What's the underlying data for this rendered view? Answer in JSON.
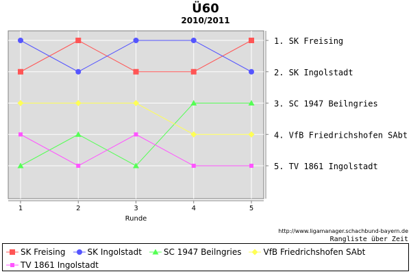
{
  "chart_data": {
    "type": "line",
    "title": "Ü60",
    "subtitle": "2010/2011",
    "xlabel": "Runde",
    "x": [
      1,
      2,
      3,
      4,
      5
    ],
    "ylim": [
      1,
      5
    ],
    "y_inverted": true,
    "grid": true,
    "rank_labels": [
      "1. SK Freising",
      "2. SK Ingolstadt",
      "3. SC 1947 Beilngries",
      "4. VfB Friedrichshofen SAbt",
      "5. TV 1861 Ingolstadt"
    ],
    "legend_position": "bottom",
    "series": [
      {
        "name": "SK Freising",
        "values": [
          2,
          1,
          2,
          2,
          1
        ],
        "color": "#ff5555",
        "marker": "square"
      },
      {
        "name": "SK Ingolstadt",
        "values": [
          1,
          2,
          1,
          1,
          2
        ],
        "color": "#5555ff",
        "marker": "circle"
      },
      {
        "name": "SC 1947 Beilngries",
        "values": [
          5,
          4,
          5,
          3,
          3
        ],
        "color": "#55ff55",
        "marker": "triangle"
      },
      {
        "name": "VfB Friedrichshofen SAbt",
        "values": [
          3,
          3,
          3,
          4,
          4
        ],
        "color": "#ffff55",
        "marker": "diamond"
      },
      {
        "name": "TV 1861 Ingolstadt",
        "values": [
          4,
          5,
          4,
          5,
          5
        ],
        "color": "#ff55ff",
        "marker": "smallsquare"
      }
    ]
  },
  "footer": {
    "source_url": "http://www.ligamanager.schachbund-bayern.de",
    "note": "Rangliste über Zeit"
  }
}
